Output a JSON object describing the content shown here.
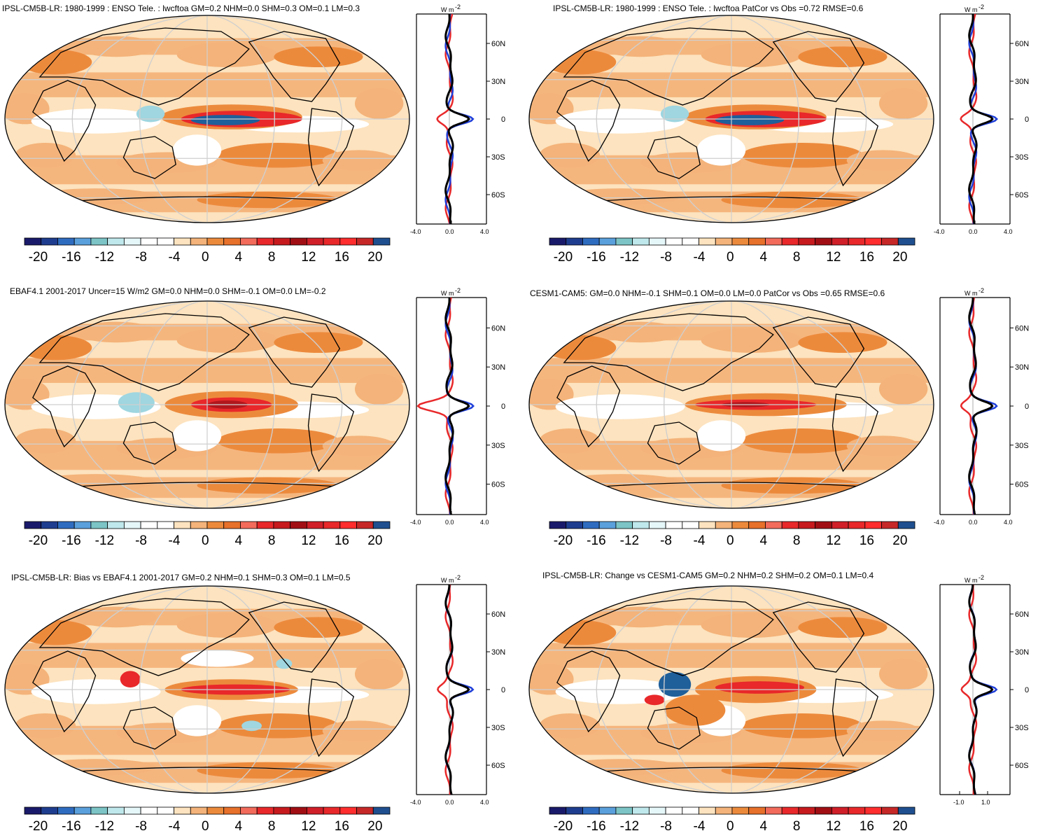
{
  "panels": [
    {
      "title": "IPSL-CM5B-LR: 1980-1999 : ENSO Tele. : lwcftoa GM=0.2 NHM=0.0 SHM=0.3 OM=0.1 LM=0.3",
      "profile_ticks": [
        "-4.0",
        "0.0",
        "4.0"
      ]
    },
    {
      "title": "IPSL-CM5B-LR: 1980-1999 : ENSO Tele. : lwcftoa PatCor vs Obs =0.72 RMSE=0.6",
      "profile_ticks": [
        "-4.0",
        "0.0",
        "4.0"
      ]
    },
    {
      "title": "EBAF4.1 2001-2017 Uncer=15 W/m2 GM=0.0 NHM=0.0 SHM=-0.1 OM=0.0 LM=-0.2",
      "profile_ticks": [
        "-4.0",
        "0.0",
        "4.0"
      ]
    },
    {
      "title": "CESM1-CAM5: GM=0.0 NHM=-0.1 SHM=0.1 OM=0.0 LM=0.0 PatCor vs Obs =0.65 RMSE=0.6",
      "profile_ticks": [
        "-4.0",
        "0.0",
        "4.0"
      ]
    },
    {
      "title": "IPSL-CM5B-LR: Bias vs EBAF4.1 2001-2017 GM=0.2 NHM=0.1 SHM=0.3 OM=0.1 LM=0.5",
      "profile_ticks": [
        "-4.0",
        "0.0",
        "4.0"
      ]
    },
    {
      "title": "IPSL-CM5B-LR: Change vs CESM1-CAM5 GM=0.2 NHM=0.2 SHM=0.2 OM=0.1 LM=0.4",
      "profile_ticks": [
        "-1.0",
        "1.0"
      ]
    }
  ],
  "profile_units": "W m",
  "profile_units_sup": "-2",
  "lat_labels": [
    "60N",
    "30N",
    "0",
    "30S",
    "60S"
  ],
  "colorbar_labels": [
    "-20",
    "-16",
    "-12",
    "-8",
    "-4",
    "0",
    "4",
    "8",
    "12",
    "16",
    "20"
  ],
  "colorbar_colors": [
    "#1a1a6b",
    "#1f3d8f",
    "#2e6cc0",
    "#5aa0dc",
    "#7cc4c6",
    "#bfe8ec",
    "#e6f7f9",
    "#ffffff",
    "#ffffff",
    "#fde3bf",
    "#f4b37a",
    "#ec8a3c",
    "#e7702a",
    "#f26b5b",
    "#e8282a",
    "#c61a1e",
    "#a10f14",
    "#d01f28",
    "#e8282a",
    "#ff2d2d",
    "#c62828",
    "#1f4f8f"
  ],
  "colors": {
    "ocean_bg": "#fde3bf",
    "mid": "#f4b37a",
    "strong": "#ec8a3c",
    "red": "#e8282a",
    "darkred": "#b0171d",
    "blue": "#1f5f9a",
    "lightblue": "#9fd6e0",
    "white": "#ffffff"
  }
}
